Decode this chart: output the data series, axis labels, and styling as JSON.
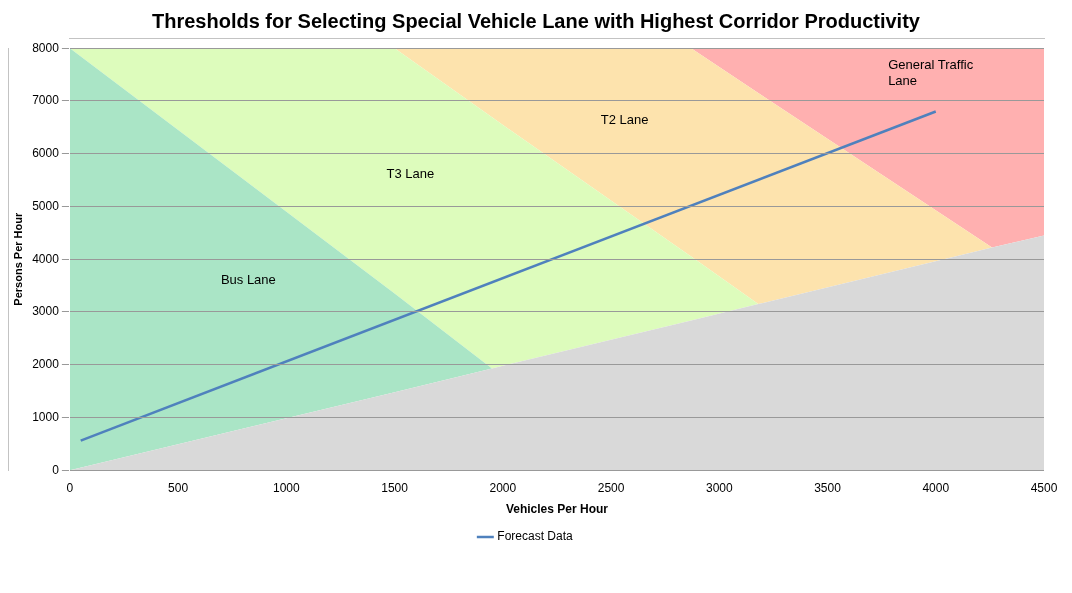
{
  "chart_data": {
    "type": "line",
    "title": "Thresholds for Selecting Special Vehicle Lane with Highest Corridor Productivity",
    "xlabel": "Vehicles Per Hour",
    "ylabel": "Persons Per Hour",
    "stacked": true,
    "series": [
      {
        "type": "area",
        "color": "#d9d9d9",
        "x": [
          0,
          1500,
          1950,
          2870,
          3180,
          4260,
          4500
        ],
        "values": [
          0,
          1480,
          1930,
          2840,
          3150,
          4220,
          4450
        ]
      },
      {
        "type": "area",
        "color": "#aae5c6",
        "x": [
          0,
          1500,
          1950,
          2870,
          3180,
          4260,
          4500
        ],
        "values": [
          8000,
          1870,
          0,
          0,
          0,
          0,
          0
        ]
      },
      {
        "type": "area",
        "color": "#ddfcbc",
        "x": [
          0,
          1500,
          1950,
          2870,
          3180,
          4260,
          4500
        ],
        "values": [
          0,
          4650,
          4760,
          1210,
          0,
          0,
          0
        ]
      },
      {
        "type": "area",
        "color": "#fde3ad",
        "x": [
          0,
          1500,
          1950,
          2870,
          3180,
          4260,
          4500
        ],
        "values": [
          0,
          0,
          1310,
          3950,
          4000,
          0,
          0
        ]
      },
      {
        "type": "area",
        "color": "#ffb0b0",
        "x": [
          0,
          1500,
          1950,
          2870,
          3180,
          4260,
          4500
        ],
        "values": [
          0,
          0,
          0,
          0,
          850,
          3780,
          3550
        ]
      },
      {
        "name": "Forecast Data",
        "color": "#4f81bd",
        "x": [
          50,
          4000
        ],
        "values": [
          560,
          6800
        ]
      }
    ],
    "annotations": [
      "Bus Lane",
      "T3 Lane",
      "T2 Lane",
      "General Traffic Lane"
    ],
    "xlim": [
      0,
      4500
    ],
    "xticks": [
      0,
      500,
      1000,
      1500,
      2000,
      2500,
      3000,
      3500,
      4000,
      4500
    ],
    "ylim": [
      0,
      8000
    ],
    "yticks": [
      0,
      1000,
      2000,
      3000,
      4000,
      5000,
      6000,
      7000,
      8000
    ],
    "grid": "y",
    "legend": "bottom",
    "marker": "none",
    "line_style": "solid"
  }
}
